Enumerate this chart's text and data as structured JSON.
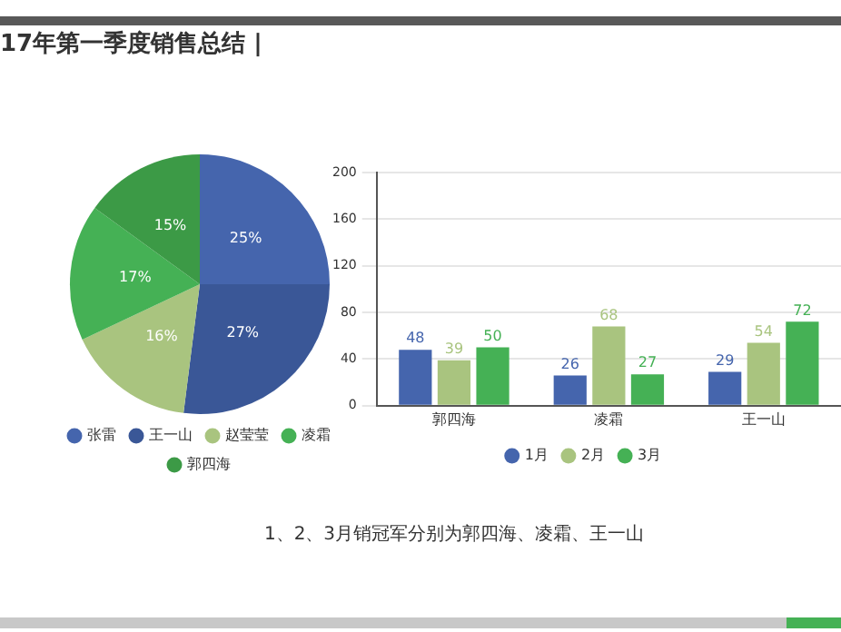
{
  "chart_data": [
    {
      "type": "pie",
      "title": "17年第一季度销售总结 |",
      "categories": [
        "张雷",
        "王一山",
        "赵莹莹",
        "凌霜",
        "郭四海"
      ],
      "values": [
        25,
        27,
        16,
        17,
        15
      ],
      "colors": [
        "#4565ad",
        "#3a5797",
        "#a9c47f",
        "#45b155",
        "#3c9a46"
      ],
      "value_labels": [
        "25%",
        "27%",
        "16%",
        "17%",
        "15%"
      ],
      "legend": "bottom"
    },
    {
      "type": "bar",
      "categories": [
        "郭四海",
        "凌霜",
        "王一山"
      ],
      "series": [
        {
          "name": "1月",
          "color": "#4565ad",
          "values": [
            48,
            26,
            29
          ]
        },
        {
          "name": "2月",
          "color": "#a9c47f",
          "values": [
            39,
            68,
            54
          ]
        },
        {
          "name": "3月",
          "color": "#45b155",
          "values": [
            50,
            27,
            72
          ]
        }
      ],
      "ylim": [
        0,
        200
      ],
      "yticks": [
        0,
        40,
        80,
        120,
        160,
        200
      ],
      "grid": "y",
      "legend": "bottom",
      "data_labels": true,
      "annotations": [
        "1、2、3月销冠军分别为郭四海、凌霜、王一山"
      ]
    }
  ]
}
